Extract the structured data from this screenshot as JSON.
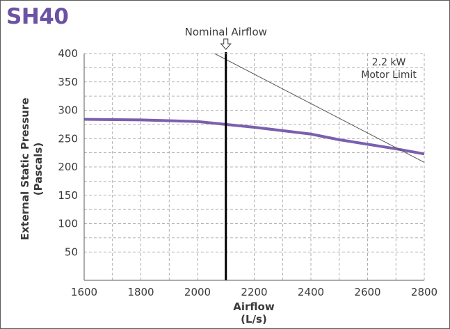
{
  "chart_data": {
    "type": "line",
    "title": "SH40",
    "xlabel": "Airflow",
    "xlabel_unit": "(L/s)",
    "ylabel": "External Static Pressure",
    "ylabel_unit": "(Pascals)",
    "xlim": [
      1600,
      2800
    ],
    "ylim": [
      0,
      400
    ],
    "x_ticks": [
      1600,
      1800,
      2000,
      2200,
      2400,
      2600,
      2800
    ],
    "y_ticks": [
      50,
      100,
      150,
      200,
      250,
      300,
      350,
      400
    ],
    "grid": true,
    "series": [
      {
        "name": "",
        "color": "#7b5fae",
        "x": [
          1600,
          1800,
          2000,
          2100,
          2200,
          2400,
          2500,
          2600,
          2700,
          2800
        ],
        "y": [
          284,
          283,
          280,
          275,
          270,
          258,
          248,
          240,
          232,
          223
        ]
      },
      {
        "name": "2.2 kW Motor Limit",
        "color": "#555555",
        "x": [
          2060,
          2800
        ],
        "y": [
          400,
          208
        ]
      }
    ],
    "annotations": [
      {
        "text": "Nominal Airflow",
        "x": 2100
      },
      {
        "text": "2.2 kW",
        "x": 2675,
        "y": 385
      },
      {
        "text": "Motor Limit",
        "x": 2675,
        "y": 363
      }
    ],
    "reference_line": {
      "x": 2100,
      "label": "Nominal Airflow"
    }
  }
}
